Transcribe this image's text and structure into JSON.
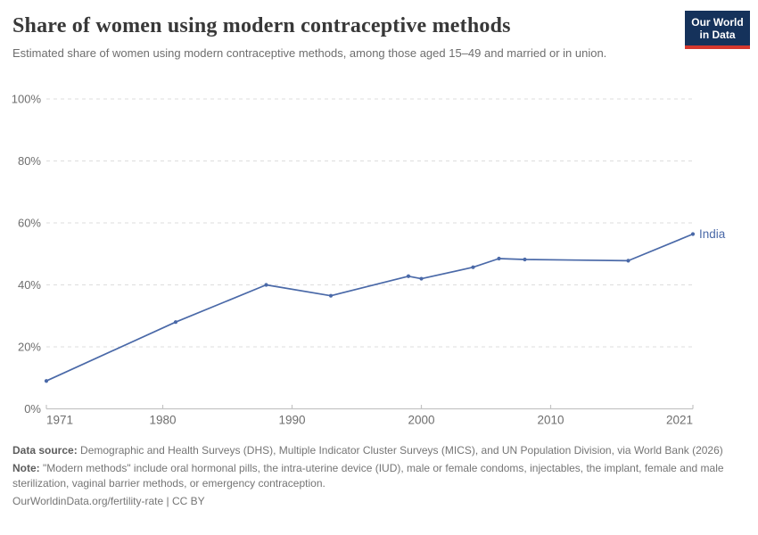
{
  "header": {
    "title": "Share of women using modern contraceptive methods",
    "subtitle": "Estimated share of women using modern contraceptive methods, among those aged 15–49 and married or in union."
  },
  "logo": {
    "line1": "Our World",
    "line2": "in Data",
    "bg_color": "#15325b",
    "bar_color": "#d5382e"
  },
  "chart_data": {
    "type": "line",
    "title": "Share of women using modern contraceptive methods",
    "xlabel": "",
    "ylabel": "",
    "xlim": [
      1971,
      2021
    ],
    "ylim": [
      0,
      100
    ],
    "grid": "horizontal-dashed",
    "legend_position": "end-of-line-label",
    "xticks": [
      1971,
      1980,
      1990,
      2000,
      2010,
      2021
    ],
    "xticklabels": [
      "1971",
      "1980",
      "1990",
      "2000",
      "2010",
      "2021"
    ],
    "yticks": [
      0,
      20,
      40,
      60,
      80,
      100
    ],
    "yticklabels": [
      "0%",
      "20%",
      "40%",
      "60%",
      "80%",
      "100%"
    ],
    "series": [
      {
        "name": "India",
        "color": "#4a69a8",
        "points": [
          {
            "x": 1971,
            "y": 9
          },
          {
            "x": 1981,
            "y": 28
          },
          {
            "x": 1988,
            "y": 40
          },
          {
            "x": 1993,
            "y": 36.5
          },
          {
            "x": 1999,
            "y": 42.8
          },
          {
            "x": 2000,
            "y": 42
          },
          {
            "x": 2004,
            "y": 45.7
          },
          {
            "x": 2006,
            "y": 48.5
          },
          {
            "x": 2008,
            "y": 48.2
          },
          {
            "x": 2016,
            "y": 47.8
          },
          {
            "x": 2021,
            "y": 56.4
          }
        ]
      }
    ],
    "colors": {
      "gridline": "#dddddd",
      "axis_line": "#c4c4c4",
      "tick_label": "#6e6e6e"
    }
  },
  "footer": {
    "datasource_label": "Data source:",
    "datasource_text": " Demographic and Health Surveys (DHS), Multiple Indicator Cluster Surveys (MICS), and UN Population Division, via World Bank (2026)",
    "note_label": "Note:",
    "note_text": " \"Modern methods\" include oral hormonal pills, the intra-uterine device (IUD), male or female condoms, injectables, the implant, female and male sterilization, vaginal barrier methods, or emergency contraception.",
    "license": "OurWorldinData.org/fertility-rate | CC BY"
  }
}
